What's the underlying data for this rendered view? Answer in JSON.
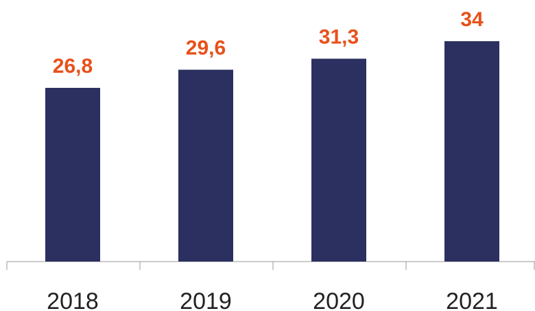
{
  "chart_data": {
    "type": "bar",
    "categories": [
      "2018",
      "2019",
      "2020",
      "2021"
    ],
    "values": [
      26.8,
      29.6,
      31.3,
      34
    ],
    "value_labels": [
      "26,8",
      "29,6",
      "31,3",
      "34"
    ],
    "color": "#2b3060",
    "label_color": "#e8501a"
  }
}
